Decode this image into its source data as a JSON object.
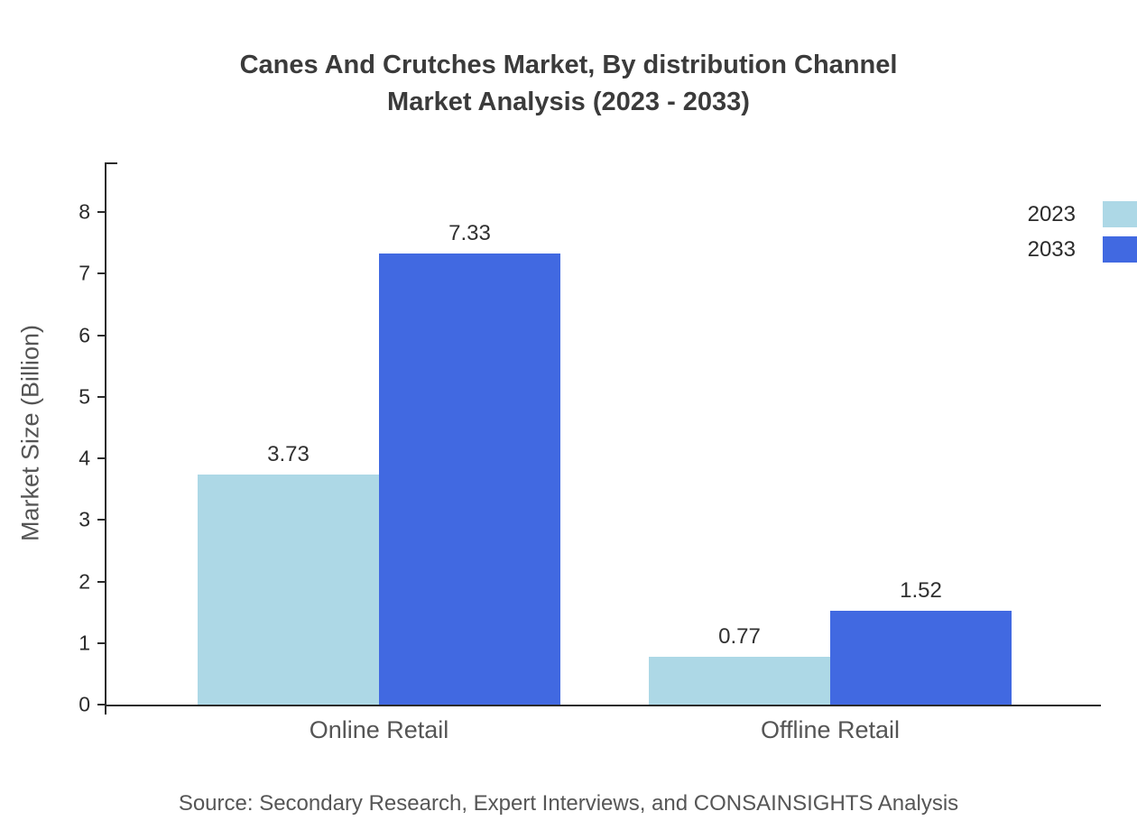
{
  "title": {
    "line1": "Canes And Crutches Market, By distribution Channel",
    "line2": "Market Analysis (2023 - 2033)"
  },
  "chart_data": {
    "type": "bar",
    "categories": [
      "Online Retail",
      "Offline Retail"
    ],
    "series": [
      {
        "name": "2023",
        "color": "#add8e6",
        "values": [
          3.73,
          0.77
        ]
      },
      {
        "name": "2033",
        "color": "#4169e1",
        "values": [
          7.33,
          1.52
        ]
      }
    ],
    "title": "Canes And Crutches Market, By distribution Channel Market Analysis (2023 - 2033)",
    "xlabel": "",
    "ylabel": "Market Size (Billion)",
    "ylim": [
      0,
      8
    ],
    "yticks": [
      0,
      1,
      2,
      3,
      4,
      5,
      6,
      7,
      8
    ],
    "grid": false,
    "legend_position": "top-right",
    "value_labels": true
  },
  "source": "Source: Secondary Research, Expert Interviews, and CONSAINSIGHTS Analysis"
}
